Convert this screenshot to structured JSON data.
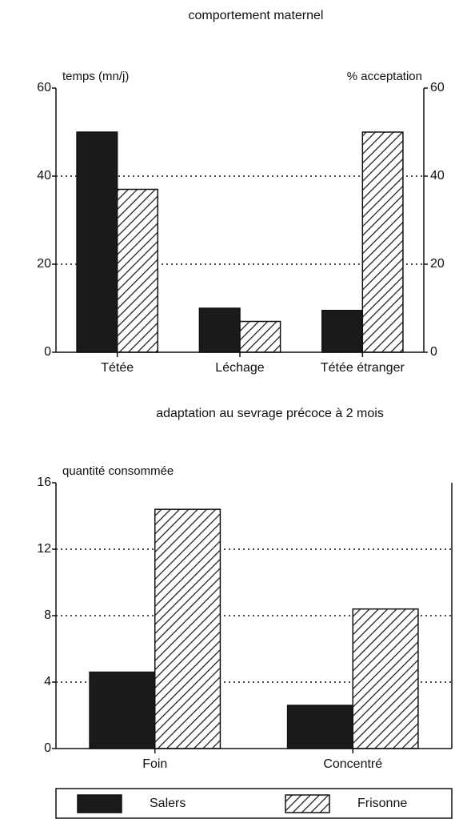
{
  "chart_data": [
    {
      "type": "bar",
      "title": "comportement maternel",
      "ylabel": "temps (mn/j)",
      "y2label": "% acceptation",
      "categories": [
        "Tétée",
        "Léchage",
        "Tétée étranger"
      ],
      "series": [
        {
          "values": [
            50,
            10,
            9.5
          ]
        },
        {
          "values": [
            37,
            7,
            50
          ]
        }
      ],
      "ylim": [
        0,
        60
      ],
      "yticks": [
        0,
        20,
        40,
        60
      ],
      "y2lim": [
        0,
        60
      ],
      "y2ticks": [
        0,
        20,
        40,
        60
      ],
      "grid": true
    },
    {
      "type": "bar",
      "title": "adaptation au sevrage précoce à 2 mois",
      "ylabel": "quantité consommée",
      "categories": [
        "Foin",
        "Concentré"
      ],
      "series": [
        {
          "values": [
            4.6,
            2.6
          ]
        },
        {
          "values": [
            14.4,
            8.4
          ]
        }
      ],
      "ylim": [
        0,
        16
      ],
      "yticks": [
        0,
        4,
        8,
        12,
        16
      ],
      "grid": true
    }
  ],
  "legend": [
    {
      "name": "Salers",
      "color": "#1a1a1a",
      "fill": "solid"
    },
    {
      "name": "Frisonne",
      "color": "#1a1a1a",
      "fill": "hatch"
    }
  ]
}
